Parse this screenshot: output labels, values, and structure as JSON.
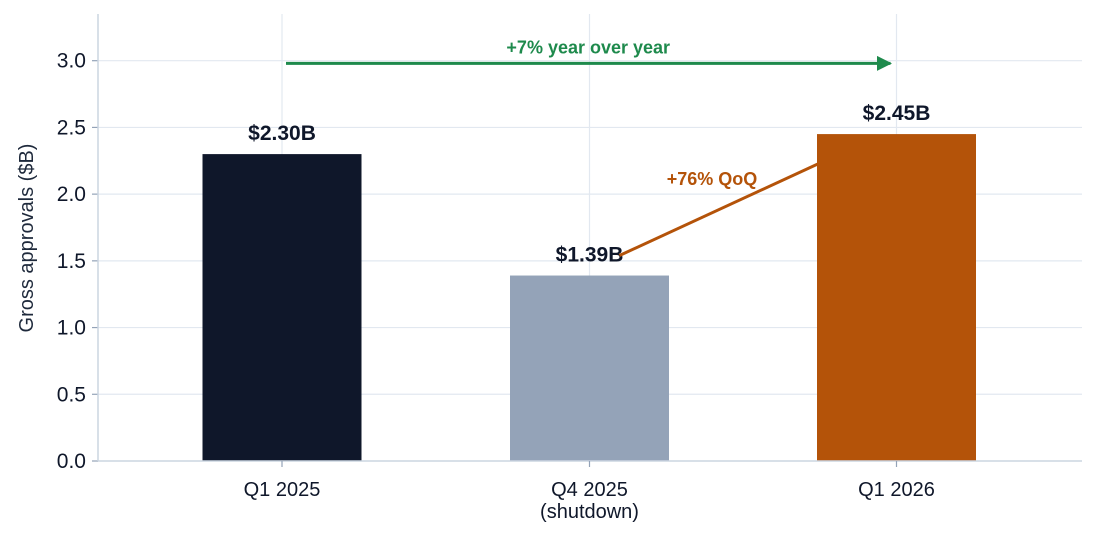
{
  "chart_data": {
    "type": "bar",
    "categories": [
      "Q1 2025",
      "Q4 2025",
      "Q1 2026"
    ],
    "category_sublabels": [
      "",
      "(shutdown)",
      ""
    ],
    "values": [
      2.3,
      1.39,
      2.45
    ],
    "data_labels": [
      "$2.30B",
      "$1.39B",
      "$2.45B"
    ],
    "bar_colors": [
      "#0f172a",
      "#94a3b8",
      "#b45309"
    ],
    "title": "",
    "xlabel": "",
    "ylabel": "Gross approvals ($B)",
    "ylim": [
      0,
      3.35
    ],
    "yticks": [
      "0.0",
      "0.5",
      "1.0",
      "1.5",
      "2.0",
      "2.5",
      "3.0"
    ],
    "grid": true,
    "annotations": [
      {
        "name": "yoy",
        "text": "+7% year over year",
        "color": "#1e8a4c",
        "from": {
          "category": 0,
          "y": 2.98
        },
        "to": {
          "category": 2,
          "y": 2.98
        },
        "arrow": true
      },
      {
        "name": "qoq",
        "text": "+76% QoQ",
        "color": "#b45309",
        "from": {
          "category": 1,
          "y": 1.54
        },
        "to": {
          "category": 2,
          "y": 2.45
        },
        "arrow": false
      }
    ]
  }
}
